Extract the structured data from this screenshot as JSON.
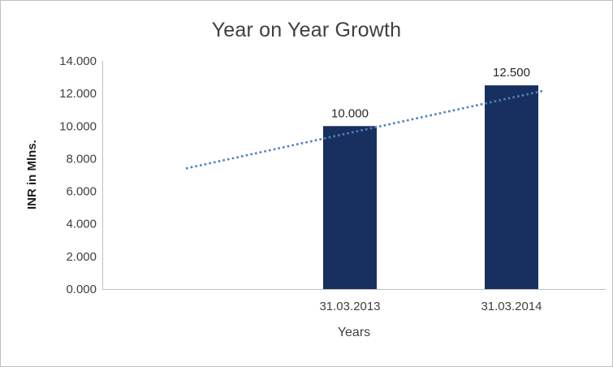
{
  "chart_data": {
    "type": "bar",
    "title": "Year on Year Growth",
    "xlabel": "Years",
    "ylabel": "INR in Mlns.",
    "categories": [
      "31.03.2013",
      "31.03.2014"
    ],
    "values": [
      10.0,
      12.5
    ],
    "data_labels": [
      "10.000",
      "12.500"
    ],
    "ylim": [
      0,
      14
    ],
    "ytick_step": 2,
    "ytick_values": [
      0,
      2,
      4,
      6,
      8,
      10,
      12,
      14
    ],
    "ytick_labels": [
      "0.000",
      "2.000",
      "4.000",
      "6.000",
      "8.000",
      "10.000",
      "12.000",
      "14.000"
    ],
    "grid": false,
    "legend": "none",
    "bar_color": "#17305f",
    "axis_color": "#bfbfbf",
    "text_color": "#3f3f3f",
    "trendline": {
      "style": "dotted",
      "color": "#4f81bd",
      "start_value": 7.4,
      "end_value": 12.15
    }
  }
}
